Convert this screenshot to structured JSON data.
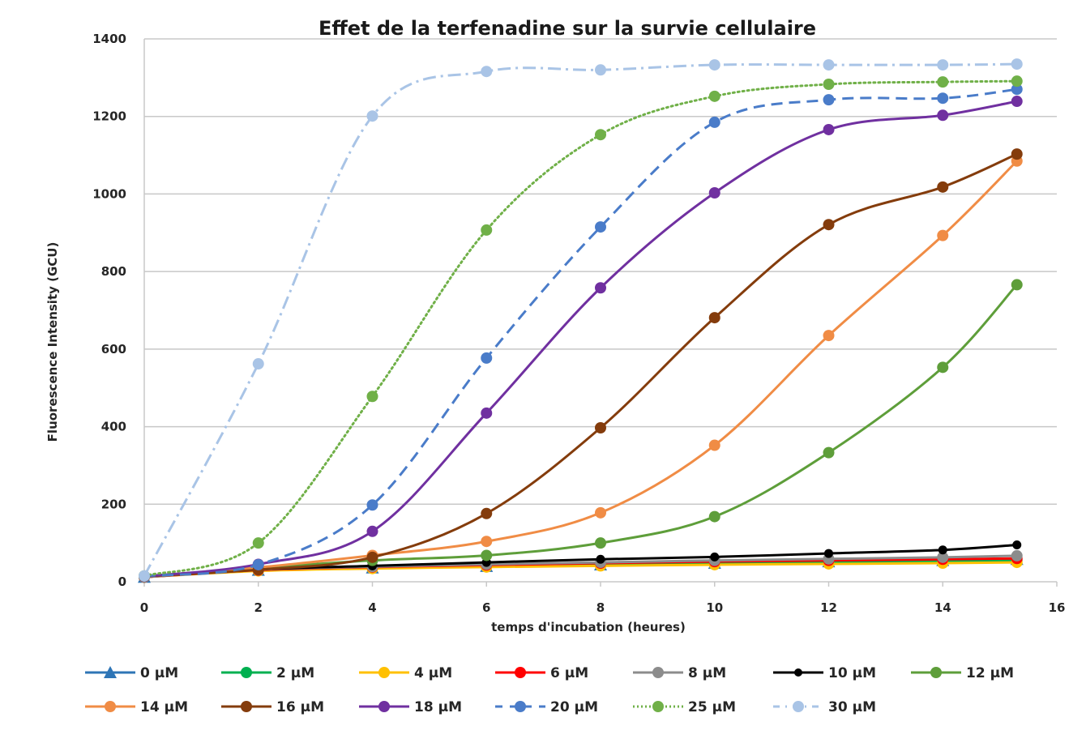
{
  "chart_data": {
    "type": "line",
    "title": "Effet de la terfenadine sur la survie cellulaire",
    "xlabel": "temps d'incubation (heures)",
    "ylabel": "Fluorescence Intensity (GCU)",
    "xlim": [
      0,
      16
    ],
    "ylim": [
      0,
      1400
    ],
    "xticks": [
      "0",
      "2",
      "4",
      "6",
      "8",
      "10",
      "12",
      "14",
      "16"
    ],
    "yticks": [
      "0",
      "200",
      "400",
      "600",
      "800",
      "1000",
      "1200",
      "1400"
    ],
    "grid": "horizontal",
    "legend_position": "bottom",
    "x": [
      0,
      2,
      4,
      6,
      8,
      10,
      12,
      14,
      15.3
    ],
    "series": [
      {
        "name": "0 µM",
        "color": "#2e75b6",
        "marker": "triangle",
        "dash": "solid",
        "values": [
          12,
          30,
          36,
          40,
          44,
          48,
          52,
          55,
          58
        ]
      },
      {
        "name": "2 µM",
        "color": "#00b050",
        "marker": "circle",
        "dash": "solid",
        "values": [
          12,
          30,
          36,
          40,
          44,
          47,
          50,
          52,
          55
        ]
      },
      {
        "name": "4 µM",
        "color": "#ffc000",
        "marker": "circle",
        "dash": "solid",
        "values": [
          12,
          28,
          34,
          38,
          41,
          44,
          46,
          48,
          50
        ]
      },
      {
        "name": "6 µM",
        "color": "#ff0000",
        "marker": "circle",
        "dash": "solid",
        "values": [
          12,
          30,
          38,
          43,
          48,
          52,
          55,
          58,
          60
        ]
      },
      {
        "name": "8 µM",
        "color": "#8c8c8c",
        "marker": "circle",
        "dash": "solid",
        "values": [
          12,
          31,
          39,
          45,
          50,
          55,
          59,
          63,
          67
        ]
      },
      {
        "name": "10 µM",
        "color": "#000000",
        "marker": "circle",
        "dash": "solid",
        "values": [
          14,
          32,
          41,
          50,
          58,
          64,
          73,
          82,
          95
        ]
      },
      {
        "name": "12 µM",
        "color": "#5e9e3a",
        "marker": "circle",
        "dash": "solid",
        "values": [
          14,
          35,
          55,
          68,
          100,
          168,
          333,
          553,
          766
        ]
      },
      {
        "name": "14 µM",
        "color": "#f08c45",
        "marker": "circle",
        "dash": "solid",
        "values": [
          14,
          37,
          68,
          104,
          178,
          352,
          635,
          893,
          1085
        ]
      },
      {
        "name": "16 µM",
        "color": "#843c0c",
        "marker": "circle",
        "dash": "solid",
        "values": [
          14,
          31,
          63,
          176,
          397,
          681,
          921,
          1018,
          1103
        ]
      },
      {
        "name": "18 µM",
        "color": "#7030a0",
        "marker": "circle",
        "dash": "solid",
        "values": [
          14,
          45,
          130,
          435,
          758,
          1003,
          1166,
          1203,
          1239
        ]
      },
      {
        "name": "20 µM",
        "color": "#4a7cc9",
        "marker": "circle",
        "dash": "dashed",
        "values": [
          15,
          44,
          198,
          577,
          915,
          1185,
          1243,
          1247,
          1270
        ]
      },
      {
        "name": "25 µM",
        "color": "#70b048",
        "marker": "circle",
        "dash": "dotted",
        "values": [
          15,
          100,
          478,
          907,
          1153,
          1252,
          1283,
          1289,
          1291
        ]
      },
      {
        "name": "30 µM",
        "color": "#a9c4e6",
        "marker": "circle",
        "dash": "dashdot",
        "values": [
          15,
          562,
          1201,
          1316,
          1320,
          1333,
          1333,
          1333,
          1335
        ]
      }
    ]
  }
}
